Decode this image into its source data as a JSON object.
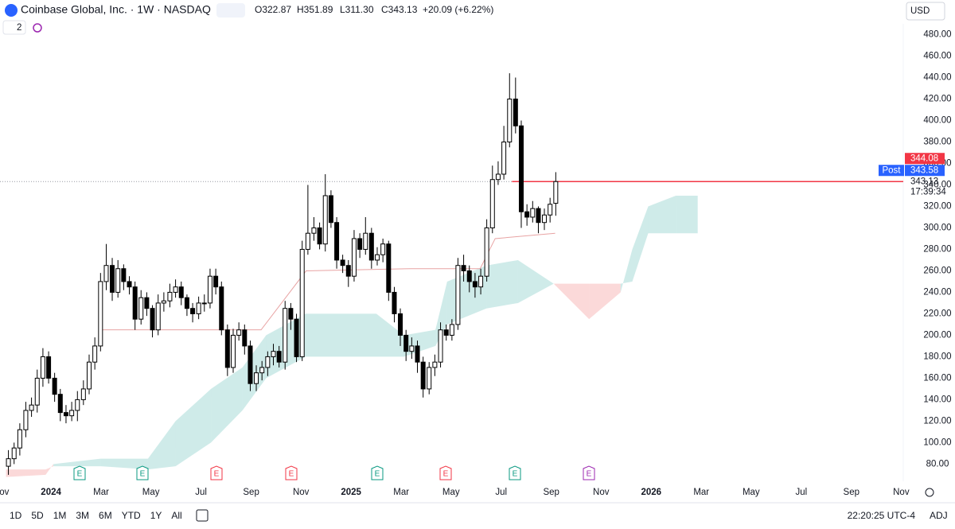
{
  "header": {
    "title": "Coinbase Global, Inc. · 1W · NASDAQ",
    "open": "O322.87",
    "high": "H351.89",
    "low": "L311.30",
    "close": "C343.13",
    "change": "+20.09 (+6.22%)",
    "currency": "USD",
    "panes": "2"
  },
  "toolbar": {
    "ranges": [
      "1D",
      "5D",
      "1M",
      "3M",
      "6M",
      "YTD",
      "1Y",
      "All"
    ],
    "time": "22:20:25 UTC-4",
    "adj": "ADJ"
  },
  "earnings_marker": "E",
  "chart_data": {
    "type": "candlestick",
    "x": [
      2023.858,
      2023.877,
      2023.896,
      2023.916,
      2023.935,
      2023.954,
      2023.973,
      2023.992,
      2024.012,
      2024.031,
      2024.05,
      2024.069,
      2024.088,
      2024.108,
      2024.127,
      2024.146,
      2024.165,
      2024.184,
      2024.204,
      2024.223,
      2024.242,
      2024.261,
      2024.28,
      2024.3,
      2024.319,
      2024.338,
      2024.357,
      2024.376,
      2024.396,
      2024.415,
      2024.434,
      2024.453,
      2024.472,
      2024.492,
      2024.511,
      2024.53,
      2024.549,
      2024.568,
      2024.588,
      2024.607,
      2024.626,
      2024.645,
      2024.664,
      2024.684,
      2024.703,
      2024.722,
      2024.741,
      2024.76,
      2024.78,
      2024.799,
      2024.818,
      2024.837,
      2024.856,
      2024.876,
      2024.895,
      2024.914,
      2024.933,
      2024.952,
      2024.972,
      2024.991,
      2025.01,
      2025.029,
      2025.048,
      2025.068,
      2025.087,
      2025.106,
      2025.125,
      2025.144,
      2025.164,
      2025.183,
      2025.202,
      2025.221,
      2025.24,
      2025.26,
      2025.279,
      2025.298,
      2025.317,
      2025.336,
      2025.356,
      2025.375,
      2025.394,
      2025.413,
      2025.432,
      2025.452,
      2025.471,
      2025.49,
      2025.509,
      2025.528,
      2025.548,
      2025.567,
      2025.586,
      2025.605,
      2025.624,
      2025.644,
      2025.663,
      2025.682
    ],
    "open": [
      78,
      85,
      95,
      112,
      130,
      135,
      160,
      180,
      160,
      145,
      128,
      125,
      130,
      140,
      150,
      175,
      190,
      250,
      265,
      240,
      262,
      250,
      245,
      215,
      235,
      225,
      205,
      230,
      232,
      240,
      245,
      235,
      225,
      220,
      230,
      230,
      255,
      245,
      205,
      170,
      200,
      205,
      190,
      155,
      165,
      170,
      180,
      185,
      175,
      225,
      215,
      180,
      280,
      295,
      300,
      285,
      330,
      305,
      270,
      265,
      255,
      290,
      280,
      295,
      270,
      275,
      285,
      240,
      220,
      200,
      185,
      190,
      175,
      150,
      170,
      175,
      205,
      200,
      210,
      265,
      260,
      250,
      245,
      255,
      300,
      345,
      350,
      380,
      420,
      395,
      315,
      310,
      318,
      305,
      312,
      322.87
    ],
    "high": [
      93,
      100,
      118,
      138,
      142,
      168,
      188,
      185,
      165,
      150,
      135,
      138,
      148,
      158,
      182,
      198,
      258,
      285,
      272,
      270,
      266,
      255,
      250,
      242,
      240,
      228,
      238,
      240,
      248,
      252,
      250,
      238,
      230,
      236,
      238,
      262,
      262,
      250,
      210,
      206,
      212,
      210,
      195,
      172,
      176,
      185,
      192,
      190,
      232,
      230,
      220,
      288,
      340,
      310,
      305,
      350,
      335,
      310,
      275,
      270,
      298,
      295,
      310,
      300,
      282,
      290,
      288,
      245,
      225,
      205,
      198,
      195,
      180,
      175,
      182,
      212,
      210,
      215,
      272,
      275,
      265,
      258,
      262,
      308,
      358,
      362,
      395,
      444,
      440,
      400,
      322,
      325,
      320,
      318,
      328,
      351.89
    ],
    "low": [
      70,
      80,
      88,
      105,
      124,
      128,
      152,
      155,
      138,
      120,
      118,
      120,
      120,
      135,
      145,
      168,
      185,
      242,
      232,
      235,
      242,
      238,
      205,
      210,
      218,
      198,
      200,
      222,
      226,
      235,
      228,
      218,
      212,
      215,
      222,
      225,
      238,
      200,
      162,
      165,
      195,
      182,
      148,
      148,
      158,
      162,
      172,
      170,
      168,
      205,
      175,
      176,
      275,
      288,
      280,
      278,
      300,
      262,
      258,
      245,
      250,
      272,
      275,
      262,
      265,
      268,
      232,
      212,
      190,
      176,
      178,
      165,
      142,
      145,
      162,
      170,
      195,
      195,
      205,
      250,
      240,
      235,
      238,
      250,
      295,
      340,
      345,
      375,
      388,
      300,
      302,
      305,
      295,
      298,
      305,
      311.3
    ],
    "close": [
      85,
      95,
      112,
      130,
      135,
      160,
      180,
      160,
      145,
      128,
      125,
      130,
      140,
      150,
      175,
      190,
      250,
      265,
      240,
      262,
      250,
      245,
      215,
      235,
      225,
      205,
      230,
      232,
      240,
      245,
      235,
      225,
      220,
      230,
      230,
      255,
      245,
      205,
      170,
      200,
      205,
      190,
      155,
      165,
      170,
      180,
      185,
      175,
      225,
      215,
      180,
      280,
      295,
      300,
      285,
      330,
      305,
      270,
      265,
      255,
      290,
      280,
      295,
      270,
      275,
      285,
      240,
      220,
      200,
      185,
      190,
      175,
      150,
      170,
      175,
      205,
      200,
      210,
      265,
      260,
      250,
      245,
      255,
      300,
      345,
      350,
      380,
      420,
      395,
      315,
      310,
      318,
      305,
      312,
      322,
      343.13
    ],
    "colors": {
      "up": "#ffffff",
      "down": "#000000",
      "outline": "#000000"
    },
    "xlim": [
      2023.83,
      2026.84
    ],
    "ylim": [
      64,
      490
    ],
    "xticks": [
      {
        "value": 2023.833,
        "label": "Nov"
      },
      {
        "value": 2024,
        "label": "2024"
      },
      {
        "value": 2024.167,
        "label": "Mar"
      },
      {
        "value": 2024.333,
        "label": "May"
      },
      {
        "value": 2024.5,
        "label": "Jul"
      },
      {
        "value": 2024.667,
        "label": "Sep"
      },
      {
        "value": 2024.833,
        "label": "Nov"
      },
      {
        "value": 2025,
        "label": "2025"
      },
      {
        "value": 2025.167,
        "label": "Mar"
      },
      {
        "value": 2025.333,
        "label": "May"
      },
      {
        "value": 2025.5,
        "label": "Jul"
      },
      {
        "value": 2025.667,
        "label": "Sep"
      },
      {
        "value": 2025.833,
        "label": "Nov"
      },
      {
        "value": 2026,
        "label": "2026"
      },
      {
        "value": 2026.167,
        "label": "Mar"
      },
      {
        "value": 2026.333,
        "label": "May"
      },
      {
        "value": 2026.5,
        "label": "Jul"
      },
      {
        "value": 2026.667,
        "label": "Sep"
      },
      {
        "value": 2026.833,
        "label": "Nov"
      }
    ],
    "yticks": [
      {
        "value": 480,
        "label": "480.00"
      },
      {
        "value": 460,
        "label": "460.00"
      },
      {
        "value": 440,
        "label": "440.00"
      },
      {
        "value": 420,
        "label": "420.00"
      },
      {
        "value": 400,
        "label": "400.00"
      },
      {
        "value": 380,
        "label": "380.00"
      },
      {
        "value": 360,
        "label": "360.00"
      },
      {
        "value": 340,
        "label": "340.00"
      },
      {
        "value": 320,
        "label": "320.00"
      },
      {
        "value": 300,
        "label": "300.00"
      },
      {
        "value": 280,
        "label": "280.00"
      },
      {
        "value": 260,
        "label": "260.00"
      },
      {
        "value": 240,
        "label": "240.00"
      },
      {
        "value": 220,
        "label": "220.00"
      },
      {
        "value": 200,
        "label": "200.00"
      },
      {
        "value": 180,
        "label": "180.00"
      },
      {
        "value": 160,
        "label": "160.00"
      },
      {
        "value": 140,
        "label": "140.00"
      },
      {
        "value": 120,
        "label": "120.00"
      },
      {
        "value": 100,
        "label": "100.00"
      },
      {
        "value": 80,
        "label": "80.00"
      }
    ],
    "cloud": {
      "x": [
        2023.85,
        2023.982,
        2024.008,
        2024.165,
        2024.323,
        2024.415,
        2024.533,
        2024.638,
        2024.717,
        2024.848,
        2025.084,
        2025.176,
        2025.281,
        2025.32,
        2025.451,
        2025.556,
        2025.675,
        2025.793,
        2025.898,
        2025.937,
        2025.99,
        2026.082,
        2026.155
      ],
      "span_a": [
        68,
        70,
        80,
        85,
        85,
        120,
        150,
        170,
        200,
        220,
        220,
        200,
        205,
        250,
        265,
        270,
        248,
        215,
        240,
        280,
        320,
        330,
        330
      ],
      "span_b": [
        75,
        75,
        78,
        78,
        75,
        78,
        100,
        130,
        160,
        180,
        180,
        180,
        190,
        210,
        225,
        230,
        248,
        248,
        248,
        250,
        295,
        295,
        295
      ],
      "up_color": "rgba(38,166,154,0.22)",
      "down_color": "rgba(239,83,80,0.22)"
    },
    "base_line": {
      "x": [
        2024.16,
        2024.7,
        2024.85,
        2025.2,
        2025.43,
        2025.48,
        2025.68
      ],
      "values": [
        205,
        205,
        260,
        262,
        262,
        290,
        295
      ],
      "color": "#e8a3a3"
    },
    "last_price": 343.13,
    "last_price_color": "#f23645",
    "countdown": "17:39:34",
    "price_markers": [
      {
        "value": 344.08,
        "color": "#f23645"
      },
      {
        "name": "Post",
        "value": 343.58,
        "color": "#2962ff"
      }
    ]
  }
}
